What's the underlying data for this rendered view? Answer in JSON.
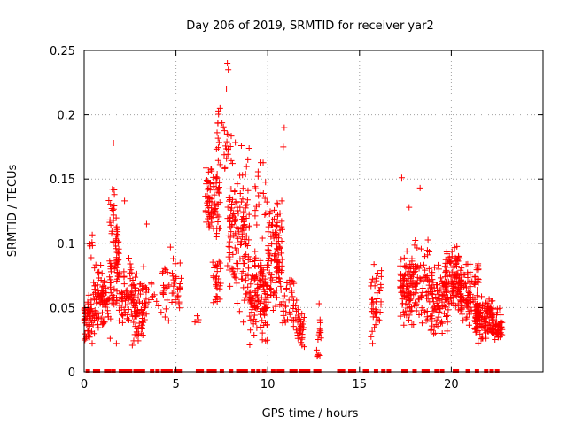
{
  "chart_data": {
    "type": "scatter",
    "title": "Day 206 of 2019, SRMTID for receiver yar2",
    "xlabel": "GPS time / hours",
    "ylabel": "SRMTID / TECUs",
    "xlim": [
      0,
      25
    ],
    "ylim": [
      0,
      0.25
    ],
    "grid": true,
    "marker": "+",
    "colors": {
      "series": "#ff0000",
      "grid": "#a0a0a0",
      "axis": "#000000"
    },
    "xticks": [
      {
        "value": 0,
        "label": "0"
      },
      {
        "value": 5,
        "label": "5"
      },
      {
        "value": 10,
        "label": "10"
      },
      {
        "value": 15,
        "label": "15"
      },
      {
        "value": 20,
        "label": "20"
      }
    ],
    "yticks": [
      {
        "value": 0,
        "label": "0"
      },
      {
        "value": 0.05,
        "label": "0.05"
      },
      {
        "value": 0.1,
        "label": "0.1"
      },
      {
        "value": 0.15,
        "label": "0.15"
      },
      {
        "value": 0.2,
        "label": "0.2"
      },
      {
        "value": 0.25,
        "label": "0.25"
      }
    ],
    "clusters": [
      {
        "x": [
          0.0,
          0.6
        ],
        "y": [
          0.02,
          0.065
        ],
        "n": 60
      },
      {
        "x": [
          0.3,
          0.5
        ],
        "y": [
          0.08,
          0.12
        ],
        "n": 6
      },
      {
        "x": [
          0.5,
          1.3
        ],
        "y": [
          0.03,
          0.085
        ],
        "n": 80
      },
      {
        "x": [
          1.3,
          1.9
        ],
        "y": [
          0.02,
          0.15
        ],
        "n": 90
      },
      {
        "x": [
          1.9,
          2.6
        ],
        "y": [
          0.03,
          0.09
        ],
        "n": 60
      },
      {
        "x": [
          2.6,
          3.3
        ],
        "y": [
          0.015,
          0.085
        ],
        "n": 70
      },
      {
        "x": [
          3.3,
          4.2
        ],
        "y": [
          0.035,
          0.08
        ],
        "n": 20
      },
      {
        "x": [
          4.2,
          5.3
        ],
        "y": [
          0.03,
          0.095
        ],
        "n": 45
      },
      {
        "x": [
          6.0,
          6.3
        ],
        "y": [
          0.035,
          0.05
        ],
        "n": 4
      },
      {
        "x": [
          6.6,
          7.4
        ],
        "y": [
          0.1,
          0.17
        ],
        "n": 80
      },
      {
        "x": [
          7.0,
          7.5
        ],
        "y": [
          0.05,
          0.1
        ],
        "n": 30
      },
      {
        "x": [
          7.2,
          7.8
        ],
        "y": [
          0.15,
          0.205
        ],
        "n": 20
      },
      {
        "x": [
          7.8,
          8.1
        ],
        "y": [
          0.05,
          0.2
        ],
        "n": 40
      },
      {
        "x": [
          8.1,
          9.0
        ],
        "y": [
          0.03,
          0.185
        ],
        "n": 110
      },
      {
        "x": [
          9.0,
          10.0
        ],
        "y": [
          0.02,
          0.095
        ],
        "n": 130
      },
      {
        "x": [
          9.3,
          10.0
        ],
        "y": [
          0.1,
          0.165
        ],
        "n": 20
      },
      {
        "x": [
          10.0,
          10.8
        ],
        "y": [
          0.04,
          0.145
        ],
        "n": 110
      },
      {
        "x": [
          10.8,
          11.6
        ],
        "y": [
          0.03,
          0.075
        ],
        "n": 40
      },
      {
        "x": [
          11.6,
          12.0
        ],
        "y": [
          0.015,
          0.05
        ],
        "n": 30
      },
      {
        "x": [
          12.6,
          12.9
        ],
        "y": [
          0.01,
          0.045
        ],
        "n": 15
      },
      {
        "x": [
          15.6,
          16.2
        ],
        "y": [
          0.015,
          0.085
        ],
        "n": 40
      },
      {
        "x": [
          17.2,
          17.9
        ],
        "y": [
          0.025,
          0.1
        ],
        "n": 90
      },
      {
        "x": [
          17.9,
          18.8
        ],
        "y": [
          0.03,
          0.105
        ],
        "n": 80
      },
      {
        "x": [
          18.8,
          19.8
        ],
        "y": [
          0.02,
          0.085
        ],
        "n": 90
      },
      {
        "x": [
          19.6,
          20.6
        ],
        "y": [
          0.045,
          0.1
        ],
        "n": 120
      },
      {
        "x": [
          20.5,
          21.5
        ],
        "y": [
          0.03,
          0.09
        ],
        "n": 90
      },
      {
        "x": [
          21.3,
          22.3
        ],
        "y": [
          0.02,
          0.06
        ],
        "n": 120
      },
      {
        "x": [
          22.3,
          22.8
        ],
        "y": [
          0.02,
          0.05
        ],
        "n": 50
      }
    ],
    "extra_points": [
      {
        "x": 1.6,
        "y": 0.178
      },
      {
        "x": 7.8,
        "y": 0.24
      },
      {
        "x": 7.85,
        "y": 0.235
      },
      {
        "x": 7.75,
        "y": 0.22
      },
      {
        "x": 7.4,
        "y": 0.205
      },
      {
        "x": 10.9,
        "y": 0.19
      },
      {
        "x": 10.85,
        "y": 0.175
      },
      {
        "x": 17.3,
        "y": 0.151
      },
      {
        "x": 18.3,
        "y": 0.143
      },
      {
        "x": 17.7,
        "y": 0.128
      },
      {
        "x": 2.2,
        "y": 0.133
      },
      {
        "x": 0.9,
        "y": 0.083
      },
      {
        "x": 16.1,
        "y": 0.063
      },
      {
        "x": 12.8,
        "y": 0.053
      },
      {
        "x": 3.4,
        "y": 0.115
      },
      {
        "x": 4.7,
        "y": 0.097
      }
    ],
    "zero_markers_x": [
      0.2,
      0.6,
      0.65,
      0.7,
      0.75,
      1.2,
      1.3,
      1.35,
      1.6,
      2.0,
      2.1,
      2.2,
      2.4,
      2.5,
      2.8,
      3.0,
      3.2,
      3.7,
      4.0,
      4.3,
      4.5,
      4.7,
      5.0,
      5.2,
      6.2,
      6.4,
      6.8,
      6.9,
      7.1,
      7.5,
      8.0,
      8.4,
      8.6,
      8.8,
      9.2,
      9.5,
      9.8,
      10.3,
      10.6,
      10.8,
      11.3,
      11.5,
      11.8,
      12.0,
      12.2,
      12.6,
      12.8,
      13.9,
      14.1,
      14.5,
      14.7,
      15.3,
      15.4,
      15.9,
      16.3,
      16.6,
      17.4,
      17.5,
      18.0,
      18.5,
      18.7,
      19.2,
      19.5,
      20.2,
      20.3,
      20.9,
      21.4,
      21.9,
      22.2,
      22.5
    ]
  }
}
